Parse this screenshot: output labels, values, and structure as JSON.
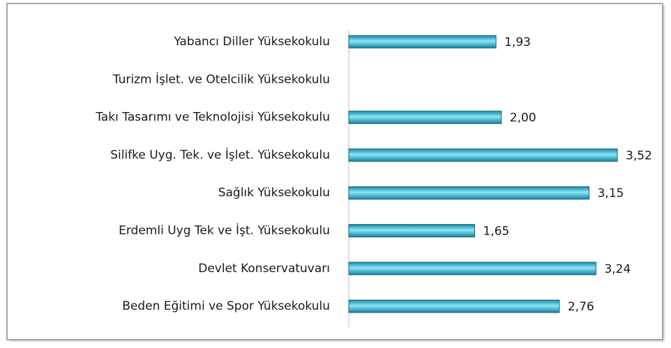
{
  "chart_data": {
    "type": "bar",
    "orientation": "horizontal",
    "categories": [
      "Yabancı Diller Yüksekokulu",
      "Turizm İşlet. ve Otelcilik Yüksekokulu",
      "Takı Tasarımı ve Teknolojisi Yüksekokulu",
      "Silifke Uyg. Tek. ve İşlet. Yüksekokulu",
      "Sağlık Yüksekokulu",
      "Erdemli Uyg Tek ve İşt. Yüksekokulu",
      "Devlet Konservatuvarı",
      "Beden Eğitimi ve Spor Yüksekokulu"
    ],
    "values": [
      1.93,
      null,
      2.0,
      3.52,
      3.15,
      1.65,
      3.24,
      2.76
    ],
    "value_labels": [
      "1,93",
      null,
      "2,00",
      "3,52",
      "3,15",
      "1,65",
      "3,24",
      "2,76"
    ],
    "color": "#2ab7d6"
  }
}
